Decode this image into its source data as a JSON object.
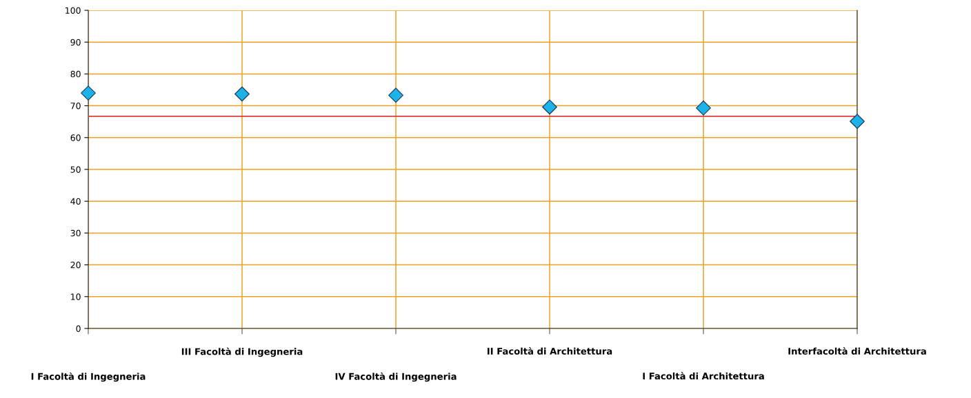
{
  "chart_data": {
    "type": "scatter",
    "categories": [
      "I Facoltà di Ingegneria",
      "III Facoltà di Ingegneria",
      "IV Facoltà di Ingegneria",
      "II Facoltà di Architettura",
      "I Facoltà di Architettura",
      "Interfacoltà di Architettura"
    ],
    "series": [
      {
        "color": "#1cb4e8",
        "values": [
          74.0,
          73.7,
          73.3,
          69.6,
          69.3,
          65.1
        ]
      }
    ],
    "ylim": [
      0,
      100
    ],
    "yticks": [
      0,
      10,
      20,
      30,
      40,
      50,
      60,
      70,
      80,
      90,
      100
    ],
    "ref_lines": [
      {
        "axis": "y",
        "value": 66.7,
        "color": "#e03c3c"
      }
    ],
    "grid": true,
    "marker": "diamond"
  }
}
